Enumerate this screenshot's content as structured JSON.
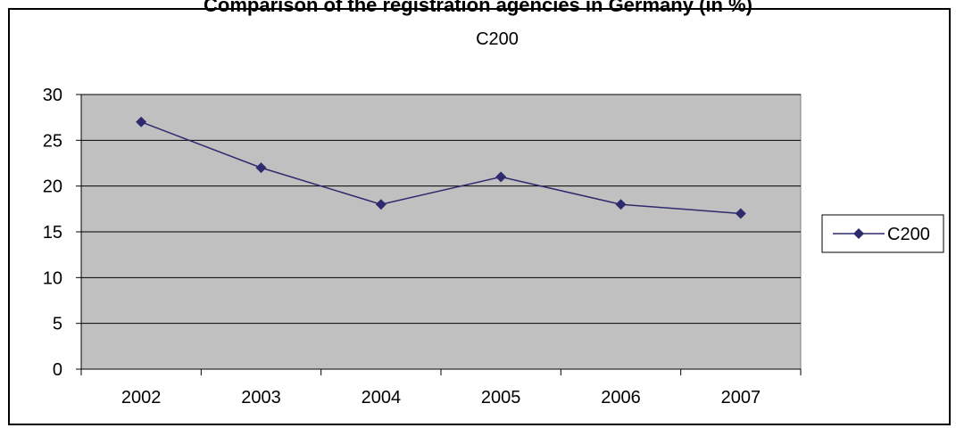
{
  "page": {
    "title": "Comparison of the registration agencies in Germany (in %)"
  },
  "chart_data": {
    "type": "line",
    "title": "C200",
    "xlabel": "",
    "ylabel": "",
    "categories": [
      "2002",
      "2003",
      "2004",
      "2005",
      "2006",
      "2007"
    ],
    "series": [
      {
        "name": "C200",
        "values": [
          27,
          22,
          18,
          21,
          18,
          17
        ],
        "color": "#2e2a6e"
      }
    ],
    "ylim": [
      0,
      30
    ],
    "yticks": [
      0,
      5,
      10,
      15,
      20,
      25,
      30
    ],
    "grid": true,
    "legend": "right",
    "plot_background": "#c0c0c0",
    "gridline_color": "#000000",
    "marker": "diamond"
  }
}
